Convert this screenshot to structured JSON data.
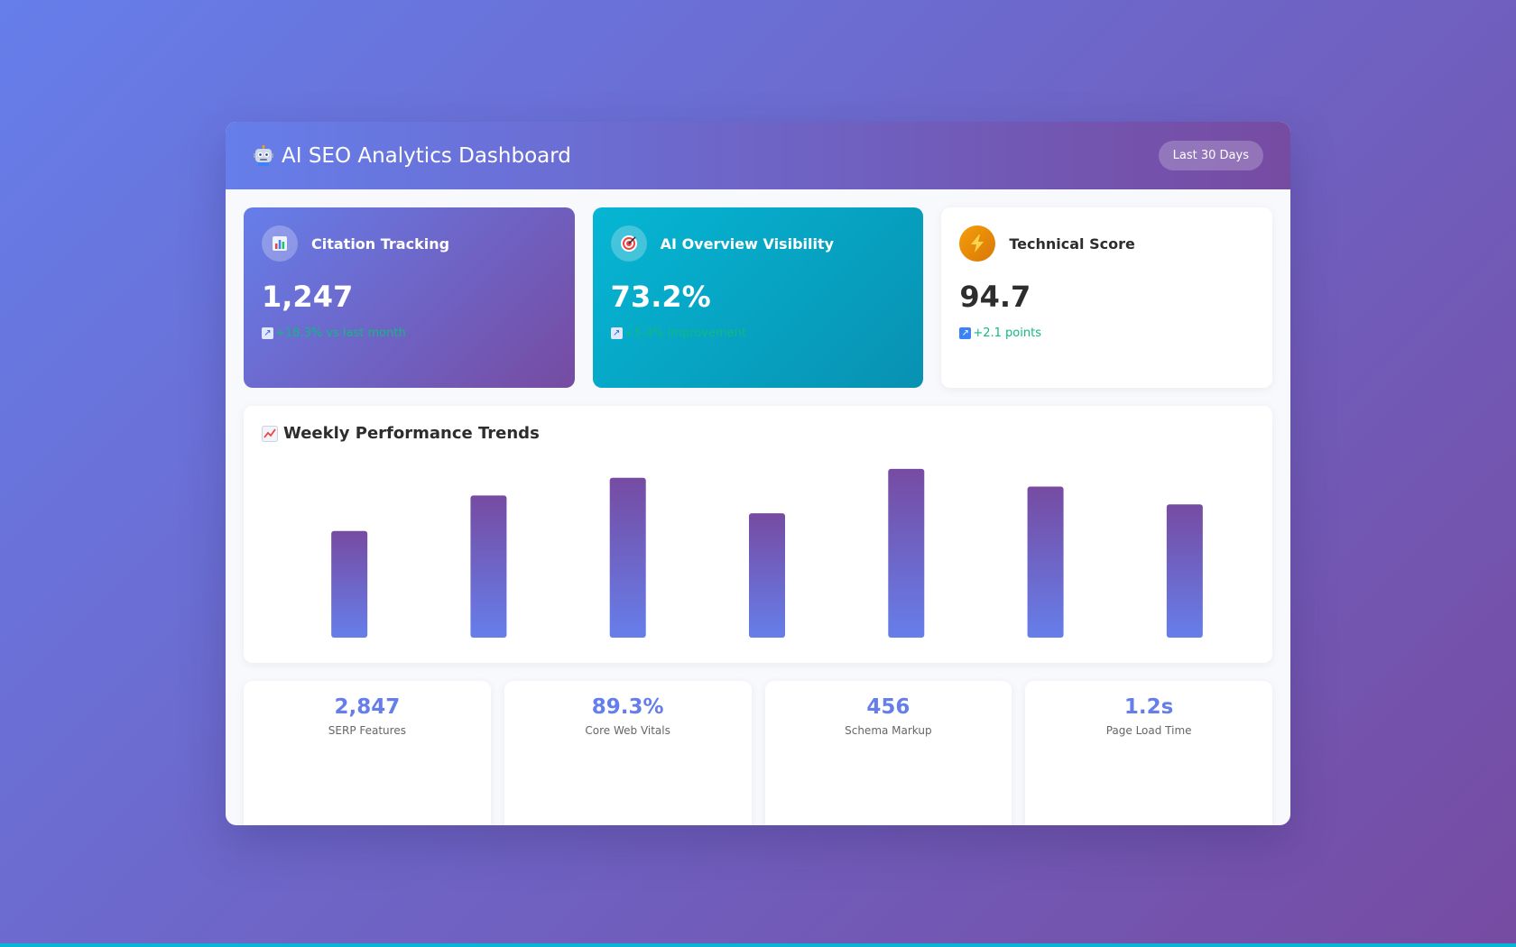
{
  "header": {
    "title": "AI SEO Analytics Dashboard",
    "date_range": "Last 30 Days"
  },
  "cards": [
    {
      "title": "Citation Tracking",
      "value": "1,247",
      "change": "+18.3% vs last month",
      "icon": "bar-chart-icon",
      "color": "#667eea"
    },
    {
      "title": "AI Overview Visibility",
      "value": "73.2%",
      "change": "+5.4% improvement",
      "icon": "target-icon",
      "color": "#06b6d4"
    },
    {
      "title": "Technical Score",
      "value": "94.7",
      "change": "+2.1 points",
      "icon": "lightning-icon",
      "color": "#f59e0b"
    }
  ],
  "chart": {
    "title": "Weekly Performance Trends",
    "icon": "trending-up-icon"
  },
  "chart_data": {
    "type": "bar",
    "categories": [
      "",
      "",
      "",
      "",
      "",
      "",
      ""
    ],
    "values": [
      60,
      80,
      90,
      70,
      95,
      85,
      75
    ],
    "ylim": [
      0,
      100
    ],
    "color_top": "#764ba2",
    "color_bottom": "#667eea"
  },
  "stats": [
    {
      "value": "2,847",
      "label": "SERP Features"
    },
    {
      "value": "89.3%",
      "label": "Core Web Vitals"
    },
    {
      "value": "456",
      "label": "Schema Markup"
    },
    {
      "value": "1.2s",
      "label": "Page Load Time"
    }
  ]
}
